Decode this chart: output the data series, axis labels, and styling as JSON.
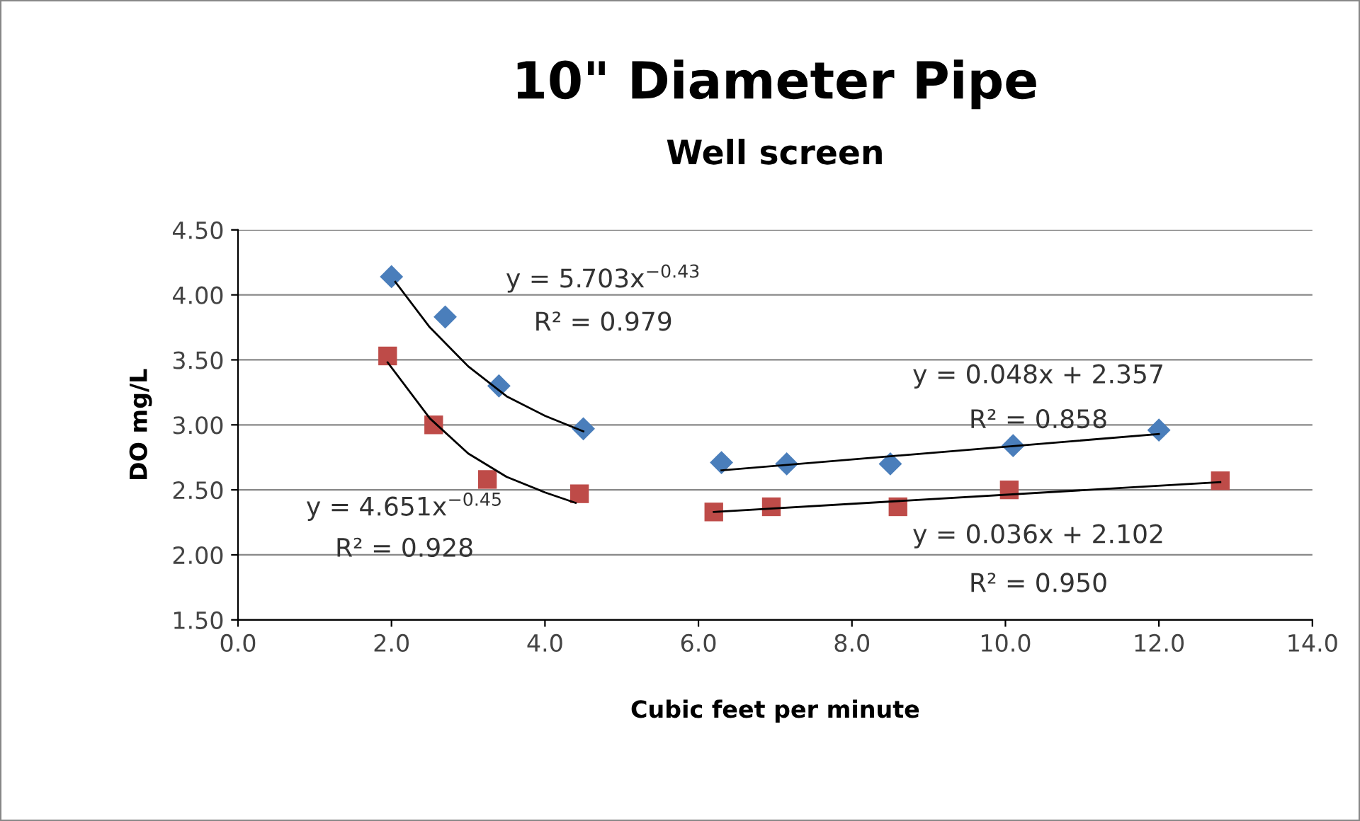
{
  "chart_data": {
    "type": "scatter",
    "title": "10\" Diameter Pipe",
    "subtitle": "Well screen",
    "xlabel": "Cubic feet per minute",
    "ylabel": "DO mg/L",
    "xlim": [
      0,
      14
    ],
    "xticks": [
      {
        "value": 0,
        "label": "0.0"
      },
      {
        "value": 2,
        "label": "2.0"
      },
      {
        "value": 4,
        "label": "4.0"
      },
      {
        "value": 6,
        "label": "6.0"
      },
      {
        "value": 8,
        "label": "8.0"
      },
      {
        "value": 10,
        "label": "10.0"
      },
      {
        "value": 12,
        "label": "12.0"
      },
      {
        "value": 14,
        "label": "14.0"
      }
    ],
    "ylim": [
      1.5,
      4.5
    ],
    "yticks": [
      {
        "value": 1.5,
        "label": "1.50"
      },
      {
        "value": 2,
        "label": "2.00"
      },
      {
        "value": 2.5,
        "label": "2.50"
      },
      {
        "value": 3,
        "label": "3.00"
      },
      {
        "value": 3.5,
        "label": "3.50"
      },
      {
        "value": 4,
        "label": "4.00"
      },
      {
        "value": 4.5,
        "label": "4.50"
      }
    ],
    "grid": "y",
    "series": [
      {
        "marker": "diamond",
        "color": "#4a7ebb",
        "x": [
          2.0,
          2.7,
          3.4,
          4.5,
          6.3,
          7.15,
          8.5,
          10.1,
          12.0
        ],
        "values": [
          4.14,
          3.83,
          3.3,
          2.97,
          2.71,
          2.7,
          2.7,
          2.84,
          2.96
        ]
      },
      {
        "marker": "square",
        "color": "#be4b48",
        "x": [
          1.95,
          2.55,
          3.25,
          4.45,
          6.2,
          6.95,
          8.6,
          10.05,
          12.8
        ],
        "values": [
          3.53,
          3.0,
          2.58,
          2.47,
          2.33,
          2.37,
          2.37,
          2.5,
          2.57
        ]
      },
      {
        "type": "line",
        "color": "#000000",
        "x": [
          2.05,
          2.5,
          3.0,
          3.5,
          4.0,
          4.5
        ],
        "values": [
          4.1,
          3.75,
          3.45,
          3.22,
          3.07,
          2.95
        ]
      },
      {
        "type": "line",
        "color": "#000000",
        "x": [
          1.95,
          2.5,
          3.0,
          3.5,
          4.0,
          4.4
        ],
        "values": [
          3.48,
          3.05,
          2.78,
          2.6,
          2.48,
          2.4
        ]
      },
      {
        "type": "line",
        "color": "#000000",
        "x": [
          6.3,
          12.0
        ],
        "values": [
          2.65,
          2.93
        ]
      },
      {
        "type": "line",
        "color": "#000000",
        "x": [
          6.2,
          12.8
        ],
        "values": [
          2.33,
          2.56
        ]
      }
    ],
    "annotations": [
      "y = 5.703x$^{−0.43}$",
      "R² = 0.979",
      "y = 4.651x$^{−0.45}$",
      "R² = 0.928",
      "y = 0.048x + 2.357",
      "R² = 0.858",
      "y = 0.036x + 2.102",
      "R² = 0.950"
    ]
  }
}
